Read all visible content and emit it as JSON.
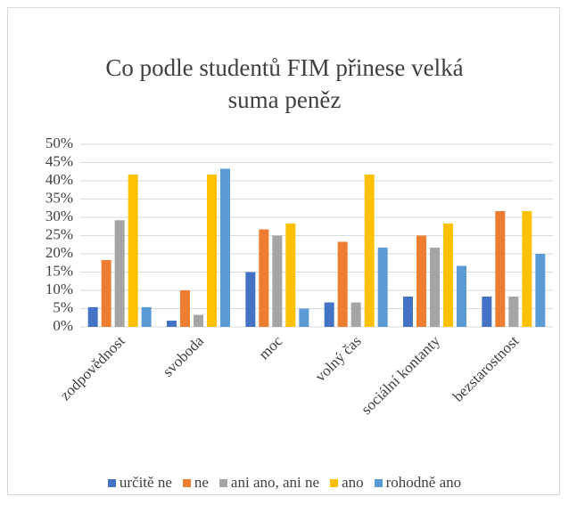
{
  "chart_data": {
    "type": "bar",
    "title": "Co podle studentů FIM přinese velká suma peněz",
    "categories": [
      "zodpovědnost",
      "svoboda",
      "moc",
      "volný čas",
      "sociální kontanty",
      "bezstarostnost"
    ],
    "series": [
      {
        "name": "určitě ne",
        "color": "#4472c4",
        "values": [
          5.4,
          1.7,
          15,
          6.7,
          8.3,
          8.3
        ]
      },
      {
        "name": "ne",
        "color": "#ed7d31",
        "values": [
          18.3,
          10,
          26.7,
          23.3,
          25,
          31.7
        ]
      },
      {
        "name": "ani ano, ani ne",
        "color": "#a5a5a5",
        "values": [
          29.2,
          3.3,
          25,
          6.7,
          21.7,
          8.3
        ]
      },
      {
        "name": "ano",
        "color": "#ffc000",
        "values": [
          41.7,
          41.7,
          28.3,
          41.7,
          28.3,
          31.7
        ]
      },
      {
        "name": "rohodně ano",
        "color": "#5b9bd5",
        "values": [
          5.4,
          43.3,
          5,
          21.7,
          16.7,
          20
        ]
      }
    ],
    "ylim": [
      0,
      50
    ],
    "yticks": [
      {
        "value": 0,
        "label": "0%"
      },
      {
        "value": 5,
        "label": "5%"
      },
      {
        "value": 10,
        "label": "10%"
      },
      {
        "value": 15,
        "label": "15%"
      },
      {
        "value": 20,
        "label": "20%"
      },
      {
        "value": 25,
        "label": "25%"
      },
      {
        "value": 30,
        "label": "30%"
      },
      {
        "value": 35,
        "label": "35%"
      },
      {
        "value": 40,
        "label": "40%"
      },
      {
        "value": 45,
        "label": "45%"
      },
      {
        "value": 50,
        "label": "50%"
      }
    ],
    "grid": true,
    "legend": "bottom"
  }
}
